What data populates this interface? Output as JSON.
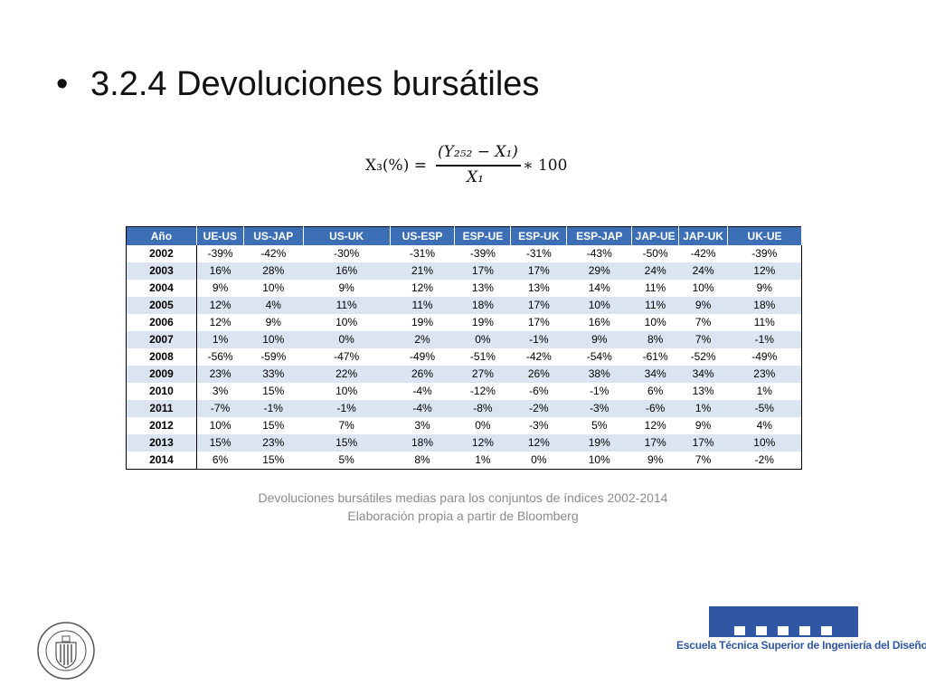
{
  "slide": {
    "bullet": "•",
    "title": "3.2.4 Devoluciones bursátiles"
  },
  "formula": {
    "lhs": "X₃(%) =",
    "numerator": "(Y₂₅₂ − X₁)",
    "denominator": "X₁",
    "rhs": "∗ 100"
  },
  "table": {
    "headers": [
      "Año",
      "UE-US",
      "US-JAP",
      "US-UK",
      "US-ESP",
      "ESP-UE",
      "ESP-UK",
      "ESP-JAP",
      "JAP-UE",
      "JAP-UK",
      "UK-UE"
    ],
    "rows": [
      [
        "2002",
        "-39%",
        "-42%",
        "-30%",
        "-31%",
        "-39%",
        "-31%",
        "-43%",
        "-50%",
        "-42%",
        "-39%"
      ],
      [
        "2003",
        "16%",
        "28%",
        "16%",
        "21%",
        "17%",
        "17%",
        "29%",
        "24%",
        "24%",
        "12%"
      ],
      [
        "2004",
        "9%",
        "10%",
        "9%",
        "12%",
        "13%",
        "13%",
        "14%",
        "11%",
        "10%",
        "9%"
      ],
      [
        "2005",
        "12%",
        "4%",
        "11%",
        "11%",
        "18%",
        "17%",
        "10%",
        "11%",
        "9%",
        "18%"
      ],
      [
        "2006",
        "12%",
        "9%",
        "10%",
        "19%",
        "19%",
        "17%",
        "16%",
        "10%",
        "7%",
        "11%"
      ],
      [
        "2007",
        "1%",
        "10%",
        "0%",
        "2%",
        "0%",
        "-1%",
        "9%",
        "8%",
        "7%",
        "-1%"
      ],
      [
        "2008",
        "-56%",
        "-59%",
        "-47%",
        "-49%",
        "-51%",
        "-42%",
        "-54%",
        "-61%",
        "-52%",
        "-49%"
      ],
      [
        "2009",
        "23%",
        "33%",
        "22%",
        "26%",
        "27%",
        "26%",
        "38%",
        "34%",
        "34%",
        "23%"
      ],
      [
        "2010",
        "3%",
        "15%",
        "10%",
        "-4%",
        "-12%",
        "-6%",
        "-1%",
        "6%",
        "13%",
        "1%"
      ],
      [
        "2011",
        "-7%",
        "-1%",
        "-1%",
        "-4%",
        "-8%",
        "-2%",
        "-3%",
        "-6%",
        "1%",
        "-5%"
      ],
      [
        "2012",
        "10%",
        "15%",
        "7%",
        "3%",
        "0%",
        "-3%",
        "5%",
        "12%",
        "9%",
        "4%"
      ],
      [
        "2013",
        "15%",
        "23%",
        "15%",
        "18%",
        "12%",
        "12%",
        "19%",
        "17%",
        "17%",
        "10%"
      ],
      [
        "2014",
        "6%",
        "15%",
        "5%",
        "8%",
        "1%",
        "0%",
        "10%",
        "9%",
        "7%",
        "-2%"
      ]
    ]
  },
  "captions": {
    "line1": "Devoluciones bursátiles medias para los conjuntos de índices 2002-2014",
    "line2": "Elaboración propia a partir de Bloomberg"
  },
  "logos": {
    "seal_text": "UNIVERSIDAD POLITECNICA VALENCIA",
    "school_name": "Escuela Técnica Superior de Ingeniería del Diseño"
  },
  "colors": {
    "header_bg": "#3d6fb6",
    "alt_row_bg": "#dbe5f1",
    "caption": "#8c8c8c",
    "logo_blue": "#2f57a4"
  }
}
